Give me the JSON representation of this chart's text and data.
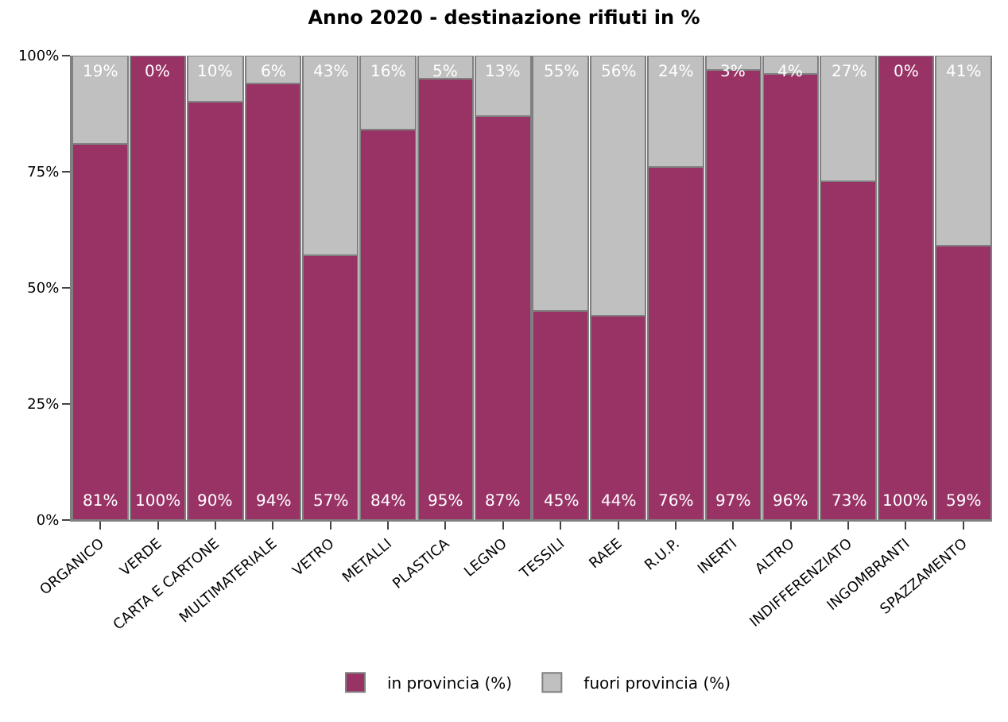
{
  "chart_data": {
    "type": "bar",
    "title": "Anno 2020 - destinazione rifiuti in %",
    "stacked": true,
    "categories": [
      "ORGANICO",
      "VERDE",
      "CARTA E CARTONE",
      "MULTIMATERIALE",
      "VETRO",
      "METALLI",
      "PLASTICA",
      "LEGNO",
      "TESSILI",
      "RAEE",
      "R.U.P.",
      "INERTI",
      "ALTRO",
      "INDIFFERENZIATO",
      "INGOMBRANTI",
      "SPAZZAMENTO"
    ],
    "series": [
      {
        "name": "in provincia (%)",
        "color": "#993366",
        "values": [
          81,
          100,
          90,
          94,
          57,
          84,
          95,
          87,
          45,
          44,
          76,
          97,
          96,
          73,
          100,
          59
        ],
        "value_labels": [
          "81%",
          "100%",
          "90%",
          "94%",
          "57%",
          "84%",
          "95%",
          "87%",
          "45%",
          "44%",
          "76%",
          "97%",
          "96%",
          "73%",
          "100%",
          "59%"
        ]
      },
      {
        "name": "fuori provincia (%)",
        "color": "#c0c0c0",
        "values": [
          19,
          0,
          10,
          6,
          43,
          16,
          5,
          13,
          55,
          56,
          24,
          3,
          4,
          27,
          0,
          41
        ],
        "value_labels": [
          "19%",
          "0%",
          "10%",
          "6%",
          "43%",
          "16%",
          "5%",
          "13%",
          "55%",
          "56%",
          "24%",
          "3%",
          "4%",
          "27%",
          "0%",
          "41%"
        ]
      }
    ],
    "ylim": [
      0,
      100
    ],
    "yticks": [
      {
        "value": 0,
        "label": "0%"
      },
      {
        "value": 25,
        "label": "25%"
      },
      {
        "value": 50,
        "label": "50%"
      },
      {
        "value": 75,
        "label": "75%"
      },
      {
        "value": 100,
        "label": "100%"
      }
    ],
    "grid": false,
    "legend": "bottom"
  }
}
